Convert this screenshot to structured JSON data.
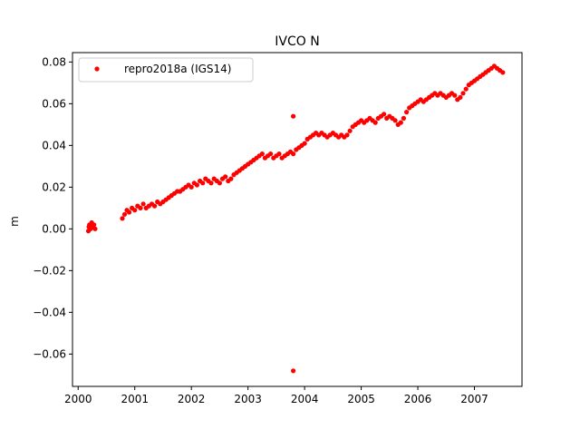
{
  "chart_data": {
    "type": "scatter",
    "title": "IVCO N",
    "xlabel": "",
    "ylabel": "m",
    "xlim": [
      1999.9,
      2007.84
    ],
    "ylim": [
      -0.0755,
      0.0845
    ],
    "x_ticks": [
      2000,
      2001,
      2002,
      2003,
      2004,
      2005,
      2006,
      2007
    ],
    "y_ticks": [
      -0.06,
      -0.04,
      -0.02,
      0.0,
      0.02,
      0.04,
      0.06,
      0.08
    ],
    "x_tick_labels": [
      "2000",
      "2001",
      "2002",
      "2003",
      "2004",
      "2005",
      "2006",
      "2007"
    ],
    "y_tick_labels": [
      "−0.06",
      "−0.04",
      "−0.02",
      "0.00",
      "0.02",
      "0.04",
      "0.06",
      "0.08"
    ],
    "grid": false,
    "legend": {
      "position": "top-left"
    },
    "series": [
      {
        "name": "repro2018a (IGS14)",
        "color": "#ff0000",
        "marker": "circle",
        "points": [
          [
            2000.18,
            -0.001
          ],
          [
            2000.19,
            0.001
          ],
          [
            2000.2,
            0.002
          ],
          [
            2000.22,
            0.0
          ],
          [
            2000.24,
            0.003
          ],
          [
            2000.26,
            0.001
          ],
          [
            2000.28,
            0.002
          ],
          [
            2000.3,
            0.0
          ],
          [
            2000.78,
            0.005
          ],
          [
            2000.82,
            0.007
          ],
          [
            2000.86,
            0.009
          ],
          [
            2000.9,
            0.008
          ],
          [
            2000.95,
            0.01
          ],
          [
            2001.0,
            0.009
          ],
          [
            2001.05,
            0.011
          ],
          [
            2001.1,
            0.01
          ],
          [
            2001.15,
            0.012
          ],
          [
            2001.2,
            0.01
          ],
          [
            2001.25,
            0.011
          ],
          [
            2001.3,
            0.012
          ],
          [
            2001.35,
            0.011
          ],
          [
            2001.4,
            0.013
          ],
          [
            2001.45,
            0.012
          ],
          [
            2001.5,
            0.013
          ],
          [
            2001.55,
            0.014
          ],
          [
            2001.6,
            0.015
          ],
          [
            2001.65,
            0.016
          ],
          [
            2001.7,
            0.017
          ],
          [
            2001.75,
            0.018
          ],
          [
            2001.8,
            0.018
          ],
          [
            2001.85,
            0.019
          ],
          [
            2001.9,
            0.02
          ],
          [
            2001.95,
            0.021
          ],
          [
            2002.0,
            0.02
          ],
          [
            2002.05,
            0.022
          ],
          [
            2002.1,
            0.021
          ],
          [
            2002.15,
            0.023
          ],
          [
            2002.2,
            0.022
          ],
          [
            2002.25,
            0.024
          ],
          [
            2002.3,
            0.023
          ],
          [
            2002.35,
            0.022
          ],
          [
            2002.4,
            0.024
          ],
          [
            2002.45,
            0.023
          ],
          [
            2002.5,
            0.022
          ],
          [
            2002.55,
            0.024
          ],
          [
            2002.6,
            0.025
          ],
          [
            2002.65,
            0.023
          ],
          [
            2002.7,
            0.024
          ],
          [
            2002.75,
            0.026
          ],
          [
            2002.8,
            0.027
          ],
          [
            2002.85,
            0.028
          ],
          [
            2002.9,
            0.029
          ],
          [
            2002.95,
            0.03
          ],
          [
            2003.0,
            0.031
          ],
          [
            2003.05,
            0.032
          ],
          [
            2003.1,
            0.033
          ],
          [
            2003.15,
            0.034
          ],
          [
            2003.2,
            0.035
          ],
          [
            2003.25,
            0.036
          ],
          [
            2003.3,
            0.034
          ],
          [
            2003.35,
            0.035
          ],
          [
            2003.4,
            0.036
          ],
          [
            2003.45,
            0.034
          ],
          [
            2003.5,
            0.035
          ],
          [
            2003.55,
            0.036
          ],
          [
            2003.6,
            0.034
          ],
          [
            2003.65,
            0.035
          ],
          [
            2003.7,
            0.036
          ],
          [
            2003.75,
            0.037
          ],
          [
            2003.8,
            0.036
          ],
          [
            2003.85,
            0.038
          ],
          [
            2003.9,
            0.039
          ],
          [
            2003.95,
            0.04
          ],
          [
            2004.0,
            0.041
          ],
          [
            2004.05,
            0.043
          ],
          [
            2004.1,
            0.044
          ],
          [
            2004.15,
            0.045
          ],
          [
            2004.2,
            0.046
          ],
          [
            2004.25,
            0.045
          ],
          [
            2004.3,
            0.046
          ],
          [
            2004.35,
            0.045
          ],
          [
            2004.4,
            0.044
          ],
          [
            2004.45,
            0.045
          ],
          [
            2004.5,
            0.046
          ],
          [
            2004.55,
            0.045
          ],
          [
            2004.6,
            0.044
          ],
          [
            2004.65,
            0.045
          ],
          [
            2004.7,
            0.044
          ],
          [
            2004.75,
            0.045
          ],
          [
            2004.8,
            0.047
          ],
          [
            2004.85,
            0.049
          ],
          [
            2004.9,
            0.05
          ],
          [
            2004.95,
            0.051
          ],
          [
            2005.0,
            0.052
          ],
          [
            2005.05,
            0.051
          ],
          [
            2005.1,
            0.052
          ],
          [
            2005.15,
            0.053
          ],
          [
            2005.2,
            0.052
          ],
          [
            2005.25,
            0.051
          ],
          [
            2005.3,
            0.053
          ],
          [
            2005.35,
            0.054
          ],
          [
            2005.4,
            0.055
          ],
          [
            2005.45,
            0.053
          ],
          [
            2005.5,
            0.054
          ],
          [
            2005.55,
            0.053
          ],
          [
            2005.6,
            0.052
          ],
          [
            2005.65,
            0.05
          ],
          [
            2005.7,
            0.051
          ],
          [
            2005.75,
            0.053
          ],
          [
            2005.8,
            0.056
          ],
          [
            2005.85,
            0.058
          ],
          [
            2005.9,
            0.059
          ],
          [
            2005.95,
            0.06
          ],
          [
            2006.0,
            0.061
          ],
          [
            2006.05,
            0.062
          ],
          [
            2006.1,
            0.061
          ],
          [
            2006.15,
            0.062
          ],
          [
            2006.2,
            0.063
          ],
          [
            2006.25,
            0.064
          ],
          [
            2006.3,
            0.065
          ],
          [
            2006.35,
            0.064
          ],
          [
            2006.4,
            0.065
          ],
          [
            2006.45,
            0.064
          ],
          [
            2006.5,
            0.063
          ],
          [
            2006.55,
            0.064
          ],
          [
            2006.6,
            0.065
          ],
          [
            2006.65,
            0.064
          ],
          [
            2006.7,
            0.062
          ],
          [
            2006.75,
            0.063
          ],
          [
            2006.8,
            0.065
          ],
          [
            2006.85,
            0.067
          ],
          [
            2006.9,
            0.069
          ],
          [
            2006.95,
            0.07
          ],
          [
            2007.0,
            0.071
          ],
          [
            2007.05,
            0.072
          ],
          [
            2007.1,
            0.073
          ],
          [
            2007.15,
            0.074
          ],
          [
            2007.2,
            0.075
          ],
          [
            2007.25,
            0.076
          ],
          [
            2007.3,
            0.077
          ],
          [
            2007.35,
            0.078
          ],
          [
            2007.4,
            0.077
          ],
          [
            2007.45,
            0.076
          ],
          [
            2007.5,
            0.075
          ],
          [
            2003.8,
            0.054
          ],
          [
            2003.8,
            -0.068
          ]
        ]
      }
    ]
  }
}
